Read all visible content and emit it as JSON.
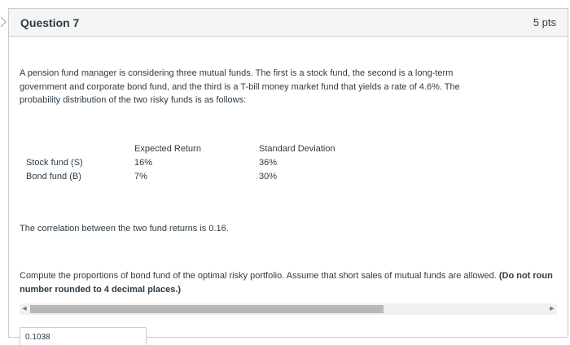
{
  "question": {
    "title": "Question 7",
    "points": "5 pts",
    "intro": "A pension fund manager is considering three mutual funds. The first is a stock fund, the second is a long-term government and corporate bond fund, and the third is a T-bill money market fund that yields a  rate of 4.6%. The probability distribution of the two risky funds is as follows:",
    "table": {
      "headers": [
        "",
        "Expected Return",
        "Standard Deviation"
      ],
      "rows": [
        {
          "fund": "Stock fund (S)",
          "expected_return": "16%",
          "std_dev": "36%"
        },
        {
          "fund": "Bond fund (B)",
          "expected_return": "7%",
          "std_dev": "30%"
        }
      ]
    },
    "correlation": "The correlation between the two fund returns is 0.16.",
    "compute_text": "Compute the proportions of bond fund of the optimal risky portfolio. Assume that short sales of mutual funds are allowed.",
    "compute_bold_1": "(Do not roun",
    "compute_bold_2": "number rounded to 4 decimal places.)",
    "answer_value": "0.1038"
  },
  "scrollbar": {
    "left_arrow": "◀",
    "right_arrow": "▶"
  }
}
